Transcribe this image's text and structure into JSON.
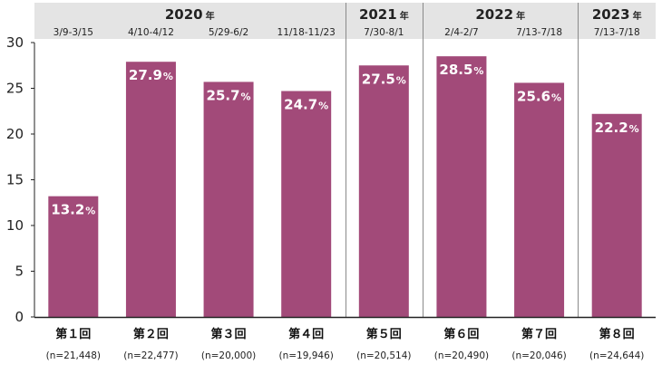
{
  "chart_data": {
    "type": "bar",
    "title": "",
    "xlabel": "",
    "ylabel": "",
    "ylim": [
      0,
      30
    ],
    "yticks": [
      0,
      5,
      10,
      15,
      20,
      25,
      30
    ],
    "grid": false,
    "bar_color": "#a24a79",
    "value_unit": "%",
    "year_suffix": "年",
    "years": [
      {
        "label": "2020",
        "span": [
          0,
          3
        ]
      },
      {
        "label": "2021",
        "span": [
          4,
          4
        ]
      },
      {
        "label": "2022",
        "span": [
          5,
          6
        ]
      },
      {
        "label": "2023",
        "span": [
          7,
          7
        ]
      }
    ],
    "categories": [
      "第１回",
      "第２回",
      "第３回",
      "第４回",
      "第５回",
      "第６回",
      "第７回",
      "第８回"
    ],
    "sample_sizes": [
      "(n=21,448)",
      "(n=22,477)",
      "(n=20,000)",
      "(n=19,946)",
      "(n=20,514)",
      "(n=20,490)",
      "(n=20,046)",
      "(n=24,644)"
    ],
    "periods": [
      "3/9-3/15",
      "4/10-4/12",
      "5/29-6/2",
      "11/18-11/23",
      "7/30-8/1",
      "2/4-2/7",
      "7/13-7/18",
      "7/13-7/18"
    ],
    "values": [
      13.2,
      27.9,
      25.7,
      24.7,
      27.5,
      28.5,
      25.6,
      22.2
    ]
  }
}
